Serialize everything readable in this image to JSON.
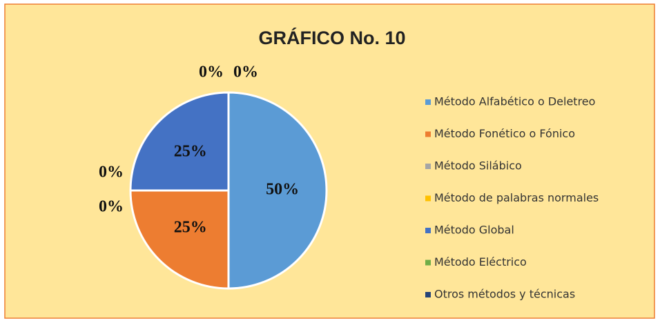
{
  "chart_data": {
    "type": "pie",
    "title": "GRÁFICO No. 10",
    "categories": [
      "Método Alfabético o Deletreo",
      "Método Fonético o Fónico",
      "Método Silábico",
      "Método de palabras normales",
      "Método Global",
      "Método Eléctrico",
      "Otros métodos y técnicas"
    ],
    "values": [
      50,
      25,
      0,
      0,
      25,
      0,
      0
    ],
    "value_labels": [
      "50%",
      "25%",
      "0%",
      "0%",
      "25%",
      "0%",
      "0%"
    ],
    "colors": [
      "#5b9bd5",
      "#ed7d31",
      "#a5a5a5",
      "#ffc000",
      "#4472c4",
      "#70ad47",
      "#264478"
    ],
    "legend": "right"
  }
}
